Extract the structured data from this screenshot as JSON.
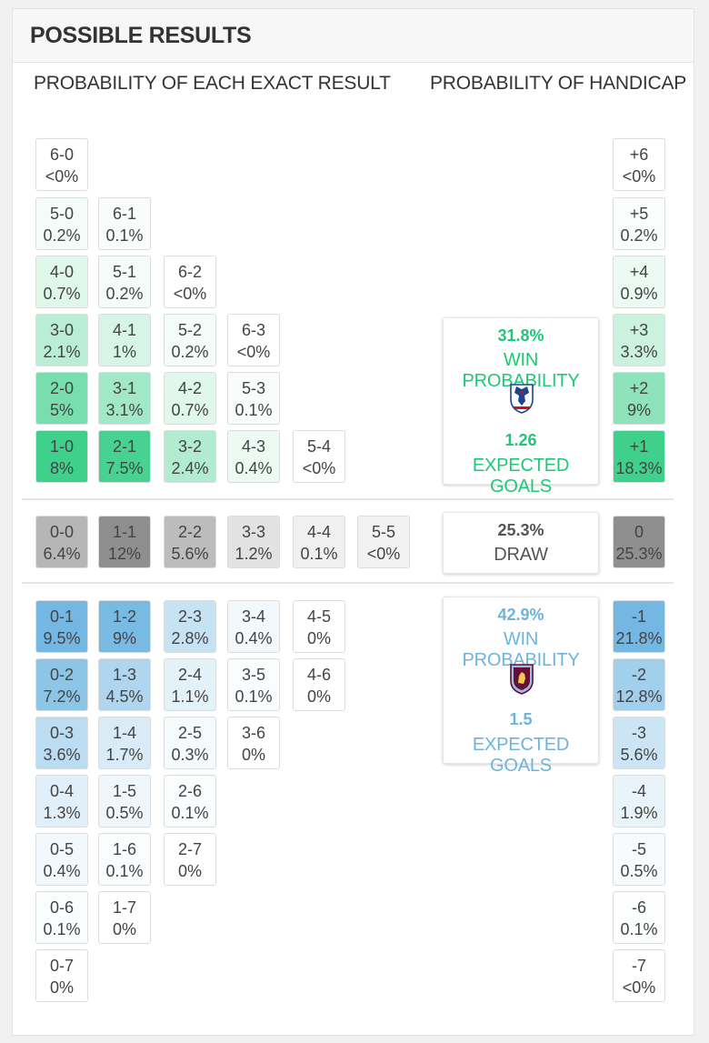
{
  "title": "POSSIBLE RESULTS",
  "headings": {
    "exact": "PROBABILITY OF EACH EXACT RESULT",
    "handicap": "PROBABILITY OF HANDICAP"
  },
  "home_summary": {
    "pct": "31.8%",
    "label": "WIN PROBABILITY",
    "goals": "1.26",
    "goals_label": "EXPECTED GOALS",
    "crest_icon": "palace-eagle-crest-icon",
    "color": "#1ec878"
  },
  "draw_summary": {
    "pct": "25.3%",
    "label": "DRAW"
  },
  "away_summary": {
    "pct": "42.9%",
    "label": "WIN PROBABILITY",
    "goals": "1.5",
    "goals_label": "EXPECTED GOALS",
    "crest_icon": "villa-lion-crest-icon",
    "color": "#6cb4de"
  },
  "home_results": [
    {
      "score": "6-0",
      "pct": "<0%"
    },
    {
      "score": "5-0",
      "pct": "0.2%"
    },
    {
      "score": "6-1",
      "pct": "0.1%"
    },
    {
      "score": "4-0",
      "pct": "0.7%"
    },
    {
      "score": "5-1",
      "pct": "0.2%"
    },
    {
      "score": "6-2",
      "pct": "<0%"
    },
    {
      "score": "3-0",
      "pct": "2.1%"
    },
    {
      "score": "4-1",
      "pct": "1%"
    },
    {
      "score": "5-2",
      "pct": "0.2%"
    },
    {
      "score": "6-3",
      "pct": "<0%"
    },
    {
      "score": "2-0",
      "pct": "5%"
    },
    {
      "score": "3-1",
      "pct": "3.1%"
    },
    {
      "score": "4-2",
      "pct": "0.7%"
    },
    {
      "score": "5-3",
      "pct": "0.1%"
    },
    {
      "score": "1-0",
      "pct": "8%"
    },
    {
      "score": "2-1",
      "pct": "7.5%"
    },
    {
      "score": "3-2",
      "pct": "2.4%"
    },
    {
      "score": "4-3",
      "pct": "0.4%"
    },
    {
      "score": "5-4",
      "pct": "<0%"
    }
  ],
  "draw_results": [
    {
      "score": "0-0",
      "pct": "6.4%"
    },
    {
      "score": "1-1",
      "pct": "12%"
    },
    {
      "score": "2-2",
      "pct": "5.6%"
    },
    {
      "score": "3-3",
      "pct": "1.2%"
    },
    {
      "score": "4-4",
      "pct": "0.1%"
    },
    {
      "score": "5-5",
      "pct": "<0%"
    }
  ],
  "away_results": [
    {
      "score": "0-1",
      "pct": "9.5%"
    },
    {
      "score": "1-2",
      "pct": "9%"
    },
    {
      "score": "2-3",
      "pct": "2.8%"
    },
    {
      "score": "3-4",
      "pct": "0.4%"
    },
    {
      "score": "4-5",
      "pct": "0%"
    },
    {
      "score": "0-2",
      "pct": "7.2%"
    },
    {
      "score": "1-3",
      "pct": "4.5%"
    },
    {
      "score": "2-4",
      "pct": "1.1%"
    },
    {
      "score": "3-5",
      "pct": "0.1%"
    },
    {
      "score": "4-6",
      "pct": "0%"
    },
    {
      "score": "0-3",
      "pct": "3.6%"
    },
    {
      "score": "1-4",
      "pct": "1.7%"
    },
    {
      "score": "2-5",
      "pct": "0.3%"
    },
    {
      "score": "3-6",
      "pct": "0%"
    },
    {
      "score": "0-4",
      "pct": "1.3%"
    },
    {
      "score": "1-5",
      "pct": "0.5%"
    },
    {
      "score": "2-6",
      "pct": "0.1%"
    },
    {
      "score": "0-5",
      "pct": "0.4%"
    },
    {
      "score": "1-6",
      "pct": "0.1%"
    },
    {
      "score": "2-7",
      "pct": "0%"
    },
    {
      "score": "0-6",
      "pct": "0.1%"
    },
    {
      "score": "1-7",
      "pct": "0%"
    },
    {
      "score": "0-7",
      "pct": "0%"
    }
  ],
  "handicap": [
    {
      "label": "+6",
      "pct": "<0%"
    },
    {
      "label": "+5",
      "pct": "0.2%"
    },
    {
      "label": "+4",
      "pct": "0.9%"
    },
    {
      "label": "+3",
      "pct": "3.3%"
    },
    {
      "label": "+2",
      "pct": "9%"
    },
    {
      "label": "+1",
      "pct": "18.3%"
    },
    {
      "label": "0",
      "pct": "25.3%"
    },
    {
      "label": "-1",
      "pct": "21.8%"
    },
    {
      "label": "-2",
      "pct": "12.8%"
    },
    {
      "label": "-3",
      "pct": "5.6%"
    },
    {
      "label": "-4",
      "pct": "1.9%"
    },
    {
      "label": "-5",
      "pct": "0.5%"
    },
    {
      "label": "-6",
      "pct": "0.1%"
    },
    {
      "label": "-7",
      "pct": "<0%"
    }
  ]
}
